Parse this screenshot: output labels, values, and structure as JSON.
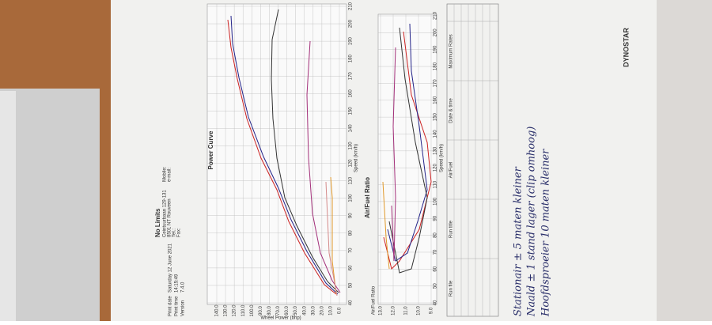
{
  "header": {
    "company": "No Limits",
    "address": [
      "Ceintuurbaan 129-131",
      "8501 NT Rouveen"
    ],
    "tel": "Tel.:",
    "fax": "Fax:",
    "mobile": "Mobile:",
    "email": "e-mail:",
    "print_date_label": "Print date",
    "print_date": "Saturday 12 June 2021",
    "print_time_label": "Print time",
    "print_time": "14:15:49",
    "version_label": "Version",
    "version": "7.4.0"
  },
  "power_curve": {
    "title": "Power Curve",
    "x_label": "Speed (km/h)",
    "y_label": "Wheel Power (bhp)",
    "speed_ticks": [
      40,
      50,
      60,
      70,
      80,
      90,
      100,
      110,
      120,
      130,
      140,
      150,
      160,
      170,
      180,
      190,
      200,
      210
    ],
    "power_ticks": [
      "140.0",
      "130.0",
      "120.0",
      "110.0",
      "100.0",
      "90.0",
      "80.0",
      "70.0",
      "60.0",
      "50.0",
      "40.0",
      "30.0",
      "20.0",
      "10.0",
      "0.0"
    ]
  },
  "afr": {
    "title": "Air/Fuel Ratio",
    "x_label": "Speed (km/h)",
    "y_label": "Air/Fuel Ratio",
    "speed_ticks": [
      40,
      50,
      60,
      70,
      80,
      90,
      100,
      110,
      120,
      130,
      140,
      150,
      160,
      170,
      180,
      190,
      200,
      210
    ],
    "afr_ticks": [
      "13.0",
      "12.0",
      "11.0",
      "10.0",
      "9.0"
    ]
  },
  "table": {
    "headers": [
      "Run file",
      "Run title",
      "Air/Fuel",
      "Date & time",
      "Maximum Rates"
    ]
  },
  "logo": "DYNOSTAR",
  "notes": [
    "Stationair ± 5 maten kleiner",
    "Naald ± 1 stand lager (clip omhoog)",
    "Hoofdsproeier 10 maten kleiner"
  ]
}
